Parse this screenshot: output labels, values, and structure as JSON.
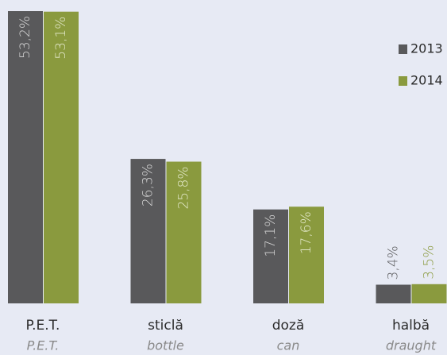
{
  "chart_data": {
    "type": "bar",
    "categories": [
      "P.E.T.",
      "sticlă",
      "doză",
      "halbă"
    ],
    "category_translations": [
      "P.E.T.",
      "bottle",
      "can",
      "draught"
    ],
    "series": [
      {
        "name": "2013",
        "color": "#59595b",
        "values": [
          53.2,
          26.3,
          17.1,
          3.4
        ],
        "value_labels": [
          "53,2%",
          "26,3%",
          "17,1%",
          "3,4%"
        ]
      },
      {
        "name": "2014",
        "color": "#8a9a3e",
        "values": [
          53.1,
          25.8,
          17.6,
          3.5
        ],
        "value_labels": [
          "53,1%",
          "25,8%",
          "17,6%",
          "3,5%"
        ]
      }
    ],
    "legend": "upper right"
  }
}
